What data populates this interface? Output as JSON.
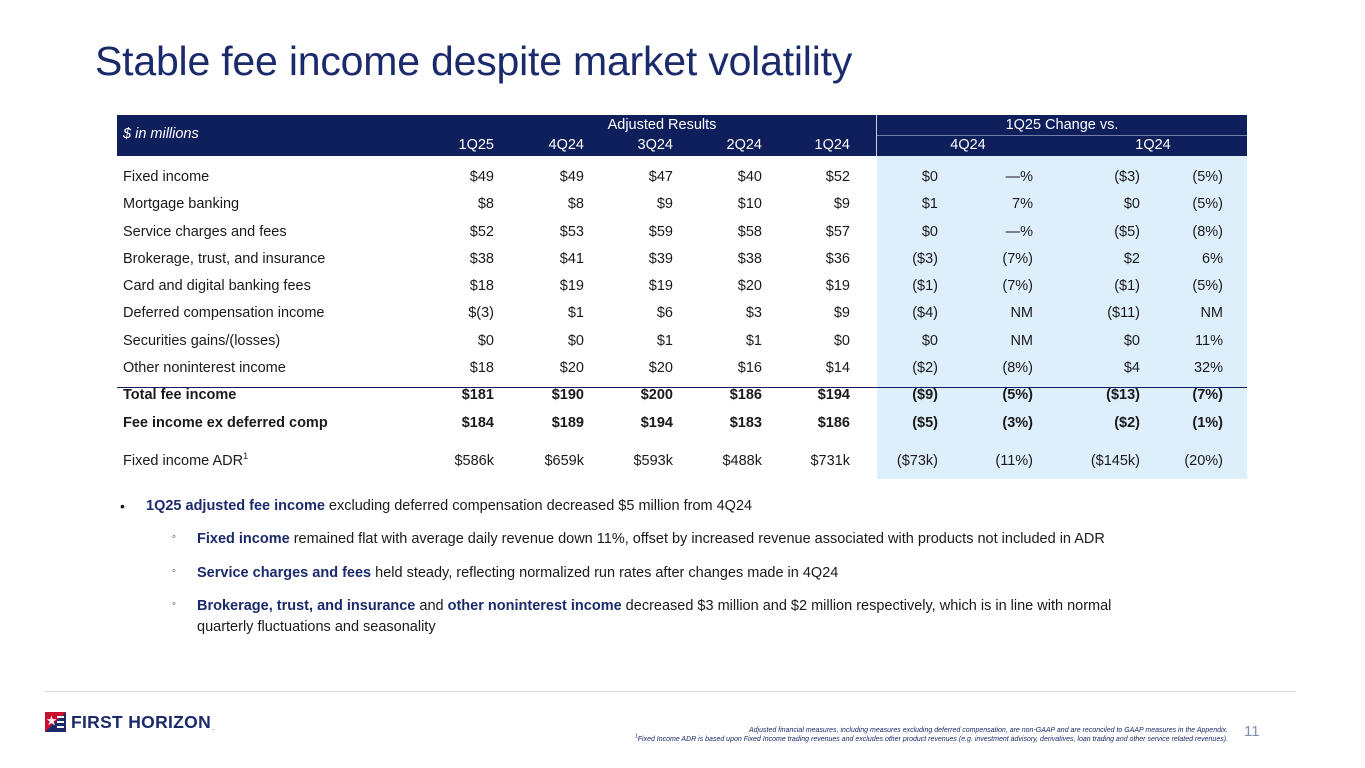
{
  "title": "Stable fee income despite market volatility",
  "table": {
    "unit_label": "$ in millions",
    "group_adjusted": "Adjusted Results",
    "group_change": "1Q25 Change vs.",
    "periods": [
      "1Q25",
      "4Q24",
      "3Q24",
      "2Q24",
      "1Q24"
    ],
    "change_periods": [
      "4Q24",
      "1Q24"
    ],
    "rows": [
      {
        "label": "Fixed income",
        "values": [
          "$49",
          "$49",
          "$47",
          "$40",
          "$52"
        ],
        "change": [
          "$0",
          "—%",
          "($3)",
          "(5%)"
        ]
      },
      {
        "label": "Mortgage banking",
        "values": [
          "$8",
          "$8",
          "$9",
          "$10",
          "$9"
        ],
        "change": [
          "$1",
          "7%",
          "$0",
          "(5%)"
        ]
      },
      {
        "label": "Service charges and fees",
        "values": [
          "$52",
          "$53",
          "$59",
          "$58",
          "$57"
        ],
        "change": [
          "$0",
          "—%",
          "($5)",
          "(8%)"
        ]
      },
      {
        "label": "Brokerage, trust, and insurance",
        "values": [
          "$38",
          "$41",
          "$39",
          "$38",
          "$36"
        ],
        "change": [
          "($3)",
          "(7%)",
          "$2",
          "6%"
        ]
      },
      {
        "label": "Card and digital banking fees",
        "values": [
          "$18",
          "$19",
          "$19",
          "$20",
          "$19"
        ],
        "change": [
          "($1)",
          "(7%)",
          "($1)",
          "(5%)"
        ]
      },
      {
        "label": "Deferred compensation income",
        "values": [
          "$(3)",
          "$1",
          "$6",
          "$3",
          "$9"
        ],
        "change": [
          "($4)",
          "NM",
          "($11)",
          "NM"
        ]
      },
      {
        "label": "Securities gains/(losses)",
        "values": [
          "$0",
          "$0",
          "$1",
          "$1",
          "$0"
        ],
        "change": [
          "$0",
          "NM",
          "$0",
          "11%"
        ]
      },
      {
        "label": "Other noninterest income",
        "values": [
          "$18",
          "$20",
          "$20",
          "$16",
          "$14"
        ],
        "change": [
          "($2)",
          "(8%)",
          "$4",
          "32%"
        ]
      }
    ],
    "totals": [
      {
        "label": "Total fee income",
        "values": [
          "$181",
          "$190",
          "$200",
          "$186",
          "$194"
        ],
        "change": [
          "($9)",
          "(5%)",
          "($13)",
          "(7%)"
        ]
      },
      {
        "label": "Fee income ex deferred comp",
        "values": [
          "$184",
          "$189",
          "$194",
          "$183",
          "$186"
        ],
        "change": [
          "($5)",
          "(3%)",
          "($2)",
          "(1%)"
        ]
      }
    ],
    "adr": {
      "label": "Fixed income ADR",
      "sup": "1",
      "values": [
        "$586k",
        "$659k",
        "$593k",
        "$488k",
        "$731k"
      ],
      "change": [
        "($73k)",
        "(11%)",
        "($145k)",
        "(20%)"
      ]
    }
  },
  "bullets": {
    "main_bold": "1Q25 adjusted fee income",
    "main_text": " excluding deferred compensation decreased $5 million from 4Q24",
    "sub1_bold": "Fixed income",
    "sub1_text": " remained flat with average daily revenue down 11%, offset by increased revenue associated with products not included in ADR",
    "sub2_bold": "Service charges and fees",
    "sub2_text": " held steady, reflecting normalized run rates after changes made in 4Q24",
    "sub3_bold1": "Brokerage, trust, and insurance",
    "sub3_and": " and ",
    "sub3_bold2": "other noninterest income",
    "sub3_text1": " decreased $3 million and $2 million respectively, which is in line with normal",
    "sub3_text2": "quarterly fluctuations and seasonality"
  },
  "footer": {
    "logo_text": "FIRST HORIZON",
    "logo_mark": ".",
    "note1": "Adjusted financial measures, including measures excluding deferred compensation, are non-GAAP and are reconciled to GAAP measures in the Appendix.",
    "note2_sup": "1",
    "note2": "Fixed Income ADR is based upon Fixed Income trading revenues and excludes other product revenues (e.g. investment advisory, derivatives, loan trading and other service related revenues).",
    "page": "11"
  },
  "colors": {
    "navy": "#0e1f5b",
    "shade": "#deeffc",
    "title": "#1b2a6b"
  }
}
